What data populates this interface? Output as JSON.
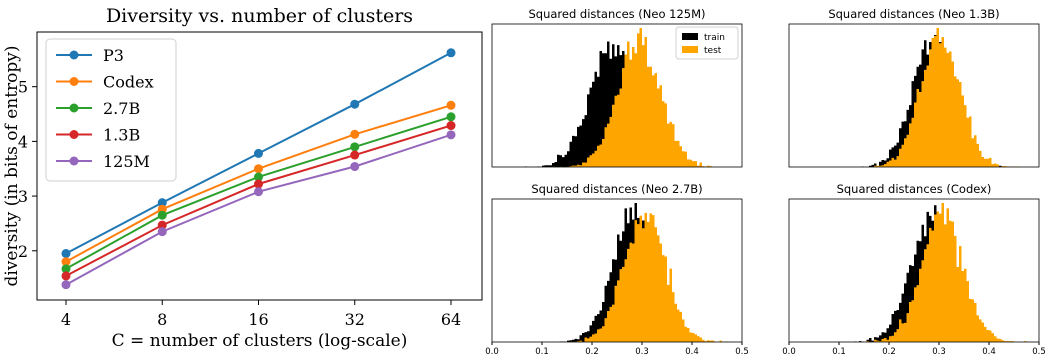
{
  "chart_data": [
    {
      "type": "line",
      "title": "Diversity vs. number of clusters",
      "xlabel": "C = number of clusters (log-scale)",
      "ylabel": "diversity (in bits of entropy)",
      "xscale": "log2",
      "x": [
        4,
        8,
        16,
        32,
        64
      ],
      "x_tick_labels": [
        "4",
        "8",
        "16",
        "32",
        "64"
      ],
      "yticks": [
        2,
        3,
        4,
        5
      ],
      "y_tick_labels": [
        "2",
        "3",
        "4",
        "5"
      ],
      "ylim": [
        1.1,
        6.0
      ],
      "legend_position": "top-left",
      "grid": false,
      "series": [
        {
          "name": "P3",
          "color": "#1f77b4",
          "values": [
            1.95,
            2.88,
            3.78,
            4.68,
            5.62
          ]
        },
        {
          "name": "Codex",
          "color": "#ff7f0e",
          "values": [
            1.8,
            2.76,
            3.5,
            4.13,
            4.66
          ]
        },
        {
          "name": "2.7B",
          "color": "#2ca02c",
          "values": [
            1.67,
            2.65,
            3.35,
            3.9,
            4.45
          ]
        },
        {
          "name": "1.3B",
          "color": "#d62728",
          "values": [
            1.54,
            2.47,
            3.22,
            3.75,
            4.29
          ]
        },
        {
          "name": "125M",
          "color": "#9467bd",
          "values": [
            1.38,
            2.35,
            3.08,
            3.54,
            4.12
          ]
        }
      ]
    },
    {
      "type": "histogram",
      "title": "Squared distances (Neo 125M)",
      "xlim": [
        0,
        0.5
      ],
      "legend": [
        "train",
        "test"
      ],
      "legend_position": "top-right",
      "series": [
        {
          "name": "train",
          "color": "#000000",
          "mean": 0.24,
          "std": 0.045
        },
        {
          "name": "test",
          "color": "#ffa500",
          "mean": 0.295,
          "std": 0.043
        }
      ]
    },
    {
      "type": "histogram",
      "title": "Squared distances (Neo 1.3B)",
      "xlim": [
        0,
        0.5
      ],
      "series": [
        {
          "name": "train",
          "color": "#000000",
          "mean": 0.288,
          "std": 0.04
        },
        {
          "name": "test",
          "color": "#ffa500",
          "mean": 0.303,
          "std": 0.04
        }
      ]
    },
    {
      "type": "histogram",
      "title": "Squared distances (Neo 2.7B)",
      "xlim": [
        0,
        0.5
      ],
      "x_tick_labels": [
        "0.0",
        "0.1",
        "0.2",
        "0.3",
        "0.4",
        "0.5"
      ],
      "series": [
        {
          "name": "train",
          "color": "#000000",
          "mean": 0.283,
          "std": 0.042
        },
        {
          "name": "test",
          "color": "#ffa500",
          "mean": 0.305,
          "std": 0.042
        }
      ]
    },
    {
      "type": "histogram",
      "title": "Squared distances (Codex)",
      "xlim": [
        0,
        0.5
      ],
      "x_tick_labels": [
        "0.0",
        "0.1",
        "0.2",
        "0.3",
        "0.4",
        "0.5"
      ],
      "series": [
        {
          "name": "train",
          "color": "#000000",
          "mean": 0.285,
          "std": 0.042
        },
        {
          "name": "test",
          "color": "#ffa500",
          "mean": 0.307,
          "std": 0.042
        }
      ]
    }
  ]
}
